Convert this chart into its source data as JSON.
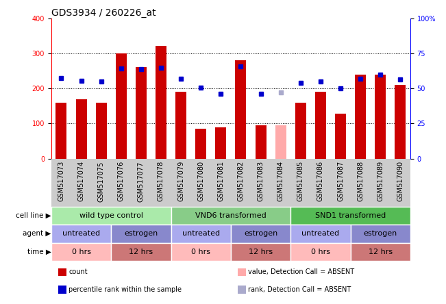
{
  "title": "GDS3934 / 260226_at",
  "samples": [
    "GSM517073",
    "GSM517074",
    "GSM517075",
    "GSM517076",
    "GSM517077",
    "GSM517078",
    "GSM517079",
    "GSM517080",
    "GSM517081",
    "GSM517082",
    "GSM517083",
    "GSM517084",
    "GSM517085",
    "GSM517086",
    "GSM517087",
    "GSM517088",
    "GSM517089",
    "GSM517090"
  ],
  "bar_values": [
    160,
    170,
    160,
    300,
    260,
    322,
    190,
    85,
    90,
    280,
    95,
    95,
    160,
    190,
    128,
    240,
    240,
    210
  ],
  "bar_absent": [
    false,
    false,
    false,
    false,
    false,
    false,
    false,
    false,
    false,
    false,
    false,
    true,
    false,
    false,
    false,
    false,
    false,
    false
  ],
  "dot_values": [
    230,
    222,
    220,
    257,
    255,
    258,
    228,
    202,
    185,
    262,
    185,
    188,
    215,
    220,
    200,
    228,
    240,
    225
  ],
  "dot_absent": [
    false,
    false,
    false,
    false,
    false,
    false,
    false,
    false,
    false,
    false,
    false,
    true,
    false,
    false,
    false,
    false,
    false,
    false
  ],
  "bar_color": "#cc0000",
  "bar_absent_color": "#ffaaaa",
  "dot_color": "#0000cc",
  "dot_absent_color": "#aaaacc",
  "ylim_left": [
    0,
    400
  ],
  "ylim_right": [
    0,
    100
  ],
  "yticks_left": [
    0,
    100,
    200,
    300,
    400
  ],
  "yticks_right": [
    0,
    25,
    50,
    75,
    100
  ],
  "ytick_labels_right": [
    "0",
    "25",
    "50",
    "75",
    "100%"
  ],
  "cell_line_groups": [
    {
      "label": "wild type control",
      "start": 0,
      "end": 6,
      "color": "#aaeaaa"
    },
    {
      "label": "VND6 transformed",
      "start": 6,
      "end": 12,
      "color": "#88cc88"
    },
    {
      "label": "SND1 transformed",
      "start": 12,
      "end": 18,
      "color": "#55bb55"
    }
  ],
  "agent_groups": [
    {
      "label": "untreated",
      "start": 0,
      "end": 3,
      "color": "#aaaaee"
    },
    {
      "label": "estrogen",
      "start": 3,
      "end": 6,
      "color": "#8888cc"
    },
    {
      "label": "untreated",
      "start": 6,
      "end": 9,
      "color": "#aaaaee"
    },
    {
      "label": "estrogen",
      "start": 9,
      "end": 12,
      "color": "#8888cc"
    },
    {
      "label": "untreated",
      "start": 12,
      "end": 15,
      "color": "#aaaaee"
    },
    {
      "label": "estrogen",
      "start": 15,
      "end": 18,
      "color": "#8888cc"
    }
  ],
  "time_groups": [
    {
      "label": "0 hrs",
      "start": 0,
      "end": 3,
      "color": "#ffbbbb"
    },
    {
      "label": "12 hrs",
      "start": 3,
      "end": 6,
      "color": "#cc7777"
    },
    {
      "label": "0 hrs",
      "start": 6,
      "end": 9,
      "color": "#ffbbbb"
    },
    {
      "label": "12 hrs",
      "start": 9,
      "end": 12,
      "color": "#cc7777"
    },
    {
      "label": "0 hrs",
      "start": 12,
      "end": 15,
      "color": "#ffbbbb"
    },
    {
      "label": "12 hrs",
      "start": 15,
      "end": 18,
      "color": "#cc7777"
    }
  ],
  "row_labels": [
    "cell line",
    "agent",
    "time"
  ],
  "legend_items": [
    {
      "label": "count",
      "color": "#cc0000"
    },
    {
      "label": "percentile rank within the sample",
      "color": "#0000cc"
    },
    {
      "label": "value, Detection Call = ABSENT",
      "color": "#ffaaaa"
    },
    {
      "label": "rank, Detection Call = ABSENT",
      "color": "#aaaacc"
    }
  ],
  "plot_bg": "#ffffff",
  "xtick_bg": "#cccccc",
  "title_fontsize": 10,
  "tick_fontsize": 7,
  "annot_fontsize": 8
}
